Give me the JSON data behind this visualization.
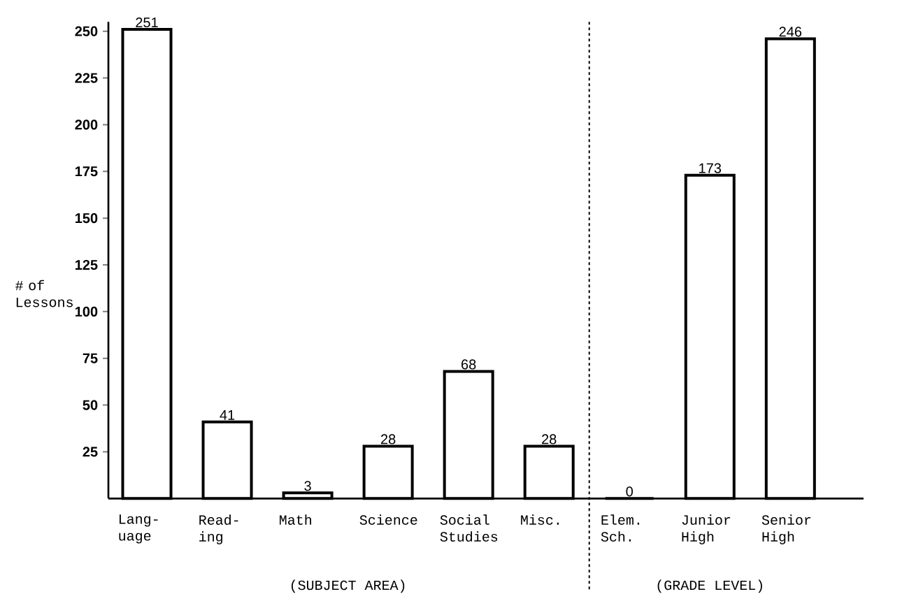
{
  "chart_data": {
    "type": "bar",
    "categories": [
      "Lang- uage",
      "Read- ing",
      "Math",
      "Science",
      "Social Studies",
      "Misc.",
      "Elem. Sch.",
      "Junior High",
      "Senior High"
    ],
    "values": [
      251,
      41,
      3,
      28,
      68,
      28,
      0,
      173,
      246
    ],
    "color": "#000000",
    "ylabel": "# of Lessons",
    "ylim": [
      0,
      255
    ],
    "yticks": [
      25,
      50,
      75,
      100,
      125,
      150,
      175,
      200,
      225,
      250
    ],
    "data_labels": true,
    "annotations": [
      "(SUBJECT AREA)",
      "(GRADE LEVEL)"
    ]
  }
}
